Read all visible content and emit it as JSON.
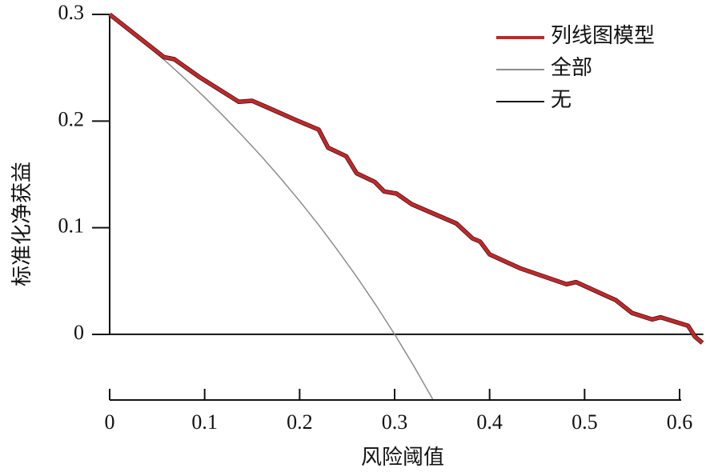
{
  "chart_data": {
    "type": "line",
    "xlabel": "风险阈值",
    "ylabel": "标准化净获益",
    "xlim": [
      0,
      0.63
    ],
    "ylim": [
      -0.062,
      0.3
    ],
    "xticks": [
      0,
      0.1,
      0.2,
      0.3,
      0.4,
      0.5,
      0.6
    ],
    "yticks": [
      0,
      0.1,
      0.2,
      0.3
    ],
    "legend": "upper right",
    "series": [
      {
        "name": "列线图模型",
        "color": "#c0282a",
        "x": [
          0,
          0.057,
          0.068,
          0.095,
          0.136,
          0.15,
          0.163,
          0.196,
          0.22,
          0.23,
          0.249,
          0.26,
          0.279,
          0.289,
          0.302,
          0.318,
          0.365,
          0.382,
          0.39,
          0.4,
          0.432,
          0.481,
          0.491,
          0.533,
          0.55,
          0.571,
          0.58,
          0.609,
          0.616,
          0.624
        ],
        "values": [
          0.3,
          0.26,
          0.258,
          0.241,
          0.218,
          0.219,
          0.214,
          0.201,
          0.192,
          0.175,
          0.167,
          0.151,
          0.143,
          0.134,
          0.132,
          0.122,
          0.104,
          0.09,
          0.087,
          0.075,
          0.062,
          0.047,
          0.049,
          0.032,
          0.02,
          0.014,
          0.016,
          0.008,
          -0.002,
          -0.008
        ]
      },
      {
        "name": "全部",
        "color": "#8c8c8c",
        "x": [
          0,
          0.02,
          0.04,
          0.06,
          0.08,
          0.1,
          0.12,
          0.14,
          0.16,
          0.18,
          0.2,
          0.22,
          0.24,
          0.26,
          0.28,
          0.3,
          0.32,
          0.34
        ],
        "values": [
          0.3,
          0.2857,
          0.2708,
          0.2553,
          0.2391,
          0.2222,
          0.2045,
          0.186,
          0.1667,
          0.1463,
          0.125,
          0.1026,
          0.0789,
          0.0541,
          0.0278,
          0,
          -0.0294,
          -0.0606
        ]
      },
      {
        "name": "无",
        "color": "#111111",
        "x": [
          0,
          0.625
        ],
        "values": [
          0,
          0
        ]
      }
    ]
  }
}
